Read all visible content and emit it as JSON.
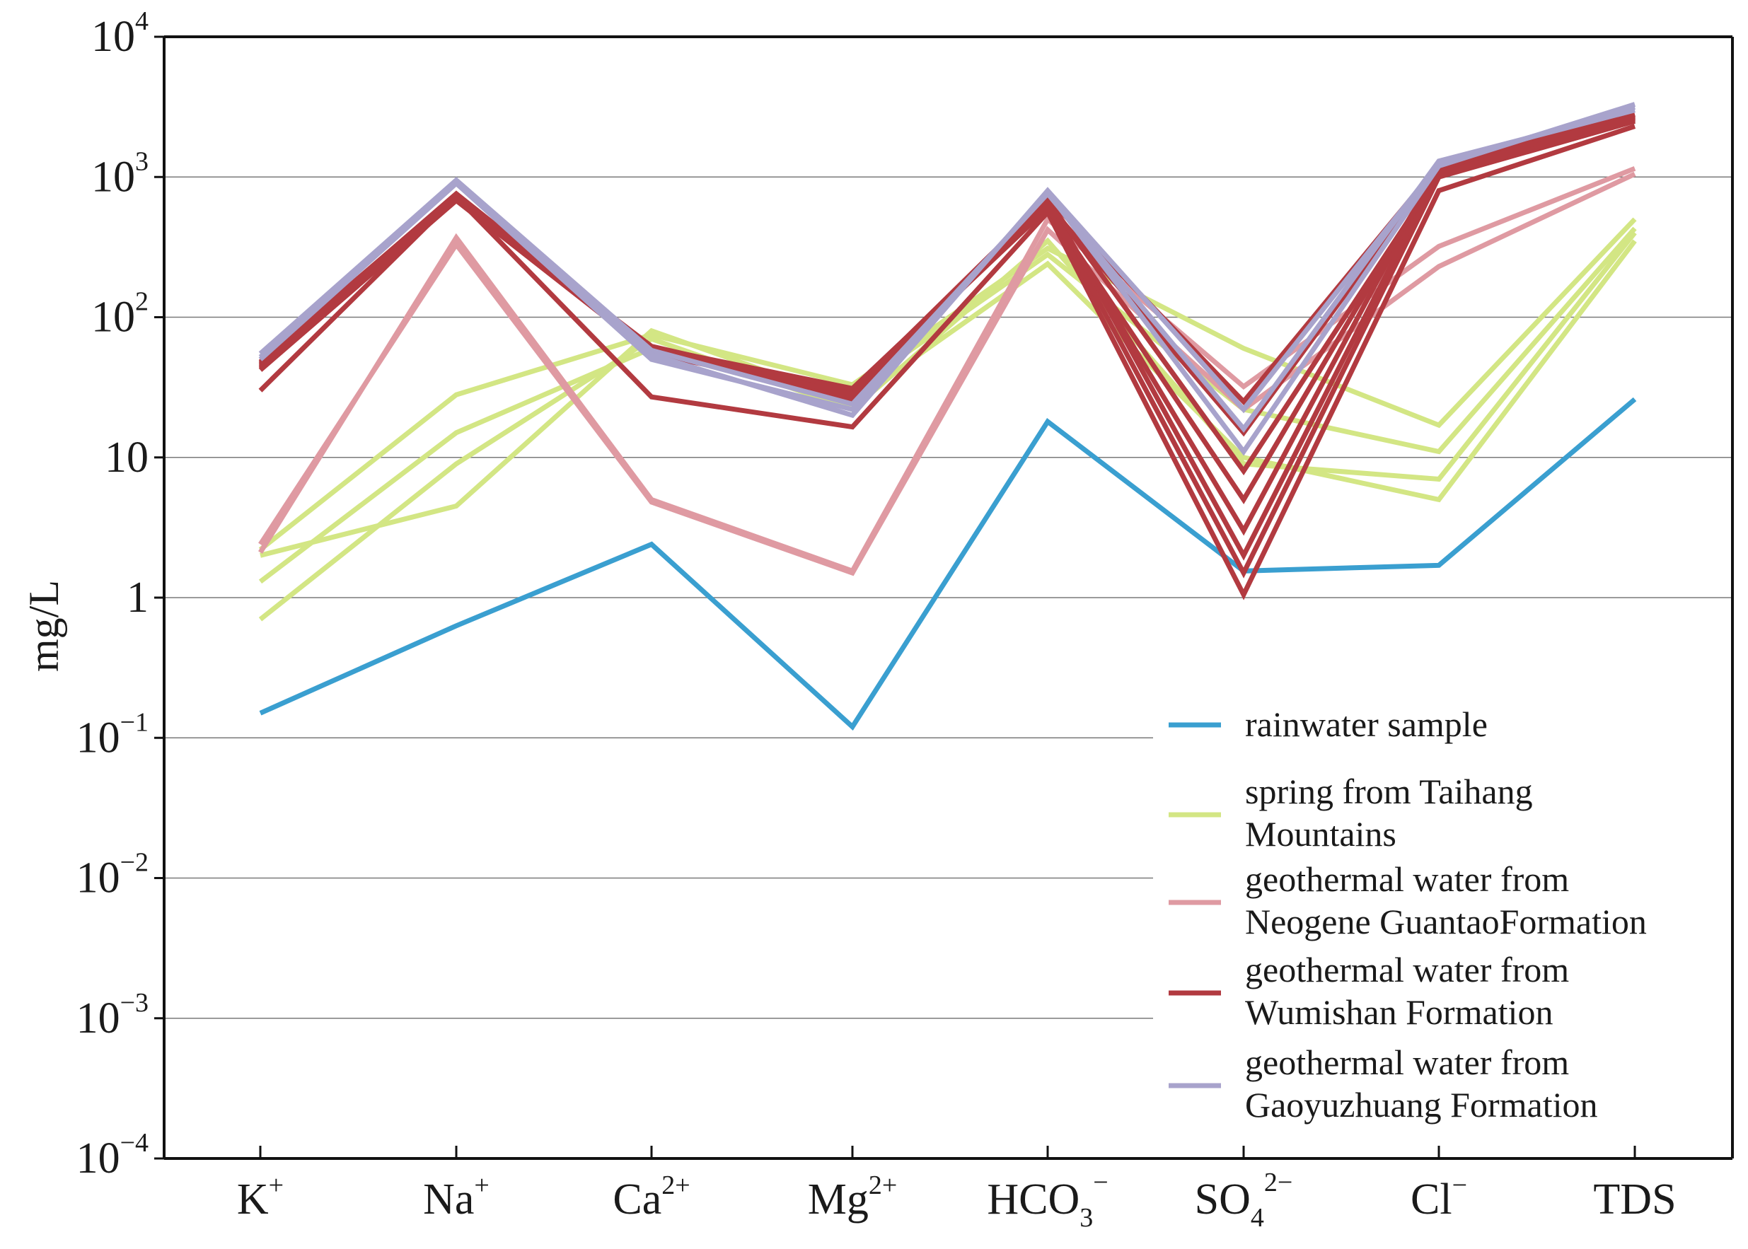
{
  "chart_data": {
    "type": "line",
    "title": "",
    "xlabel": "",
    "ylabel": "mg/L",
    "yscale": "log",
    "ylim": [
      0.0001,
      10000
    ],
    "grid": "horizontal",
    "categories": [
      {
        "base": "K",
        "sup": "+",
        "sub": ""
      },
      {
        "base": "Na",
        "sup": "+",
        "sub": ""
      },
      {
        "base": "Ca",
        "sup": "2+",
        "sub": ""
      },
      {
        "base": "Mg",
        "sup": "2+",
        "sub": ""
      },
      {
        "base": "HCO",
        "sub": "3",
        "sup": "−"
      },
      {
        "base": "SO",
        "sub": "4",
        "sup": "2−"
      },
      {
        "base": "Cl",
        "sup": "−",
        "sub": ""
      },
      {
        "base": "TDS",
        "sup": "",
        "sub": ""
      }
    ],
    "y_ticks": [
      {
        "value": 0.0001,
        "base": "10",
        "exp": "−4"
      },
      {
        "value": 0.001,
        "base": "10",
        "exp": "−3"
      },
      {
        "value": 0.01,
        "base": "10",
        "exp": "−2"
      },
      {
        "value": 0.1,
        "base": "10",
        "exp": "−1"
      },
      {
        "value": 1,
        "base": "1",
        "exp": ""
      },
      {
        "value": 10,
        "base": "10",
        "exp": ""
      },
      {
        "value": 100,
        "base": "10",
        "exp": "2"
      },
      {
        "value": 1000,
        "base": "10",
        "exp": "3"
      },
      {
        "value": 10000,
        "base": "10",
        "exp": "4"
      }
    ],
    "legend_position": "lower-right",
    "groups": [
      {
        "name": "rainwater sample",
        "legend_lines": [
          "rainwater sample"
        ],
        "color": "#3a9fd0",
        "series": [
          {
            "values": [
              0.15,
              0.63,
              2.4,
              0.12,
              18,
              1.55,
              1.7,
              26
            ]
          }
        ]
      },
      {
        "name": "spring from Taihang Mountains",
        "legend_lines": [
          "spring from Taihang",
          "Mountains"
        ],
        "color": "#d3e684",
        "series": [
          {
            "values": [
              2.2,
              28,
              75,
              33,
              310,
              60,
              17,
              500
            ]
          },
          {
            "values": [
              1.3,
              15,
              60,
              30,
              280,
              22,
              11,
              430
            ]
          },
          {
            "values": [
              0.7,
              9,
              70,
              22,
              350,
              9,
              7,
              400
            ]
          },
          {
            "values": [
              2.0,
              4.5,
              80,
              25,
              240,
              10,
              5,
              350
            ]
          }
        ]
      },
      {
        "name": "geothermal water from Neogene GuantaoFormation",
        "legend_lines": [
          "geothermal water from",
          "Neogene  GuantaoFormation"
        ],
        "color": "#df9aa2",
        "series": [
          {
            "values": [
              2.1,
              370,
              5,
              1.55,
              500,
              32,
              320,
              1150
            ]
          },
          {
            "values": [
              2.4,
              330,
              4.8,
              1.5,
              420,
              22,
              230,
              1050
            ]
          }
        ]
      },
      {
        "name": "geothermal water from Wumishan Formation",
        "legend_lines": [
          "geothermal water from",
          "Wumishan Formation"
        ],
        "color": "#b23a40",
        "series": [
          {
            "values": [
              30,
              720,
              27,
              16.5,
              560,
              1.05,
              800,
              2300
            ]
          },
          {
            "values": [
              42,
              680,
              55,
              28,
              620,
              1.5,
              1000,
              2500
            ]
          },
          {
            "values": [
              45,
              700,
              60,
              30,
              700,
              2,
              1100,
              2600
            ]
          },
          {
            "values": [
              48,
              750,
              58,
              26,
              650,
              3,
              1200,
              2700
            ]
          },
          {
            "values": [
              44,
              710,
              62,
              29,
              600,
              5,
              1150,
              2800
            ]
          },
          {
            "values": [
              46,
              730,
              57,
              27,
              680,
              8,
              1050,
              2650
            ]
          },
          {
            "values": [
              43,
              690,
              61,
              31,
              640,
              15,
              1180,
              2550
            ]
          },
          {
            "values": [
              47,
              760,
              59,
              28,
              710,
              25,
              1220,
              2750
            ]
          }
        ]
      },
      {
        "name": "geothermal water from Gaoyuzhuang Formation",
        "legend_lines": [
          "geothermal water from",
          "Gaoyuzhuang Formation"
        ],
        "color": "#a8a3cc",
        "series": [
          {
            "values": [
              50,
              900,
              50,
              22,
              780,
              11,
              1200,
              3300
            ]
          },
          {
            "values": [
              55,
              950,
              58,
              24,
              760,
              16,
              1300,
              3000
            ]
          },
          {
            "values": [
              52,
              920,
              54,
              20,
              800,
              22,
              1250,
              3150
            ]
          }
        ]
      }
    ]
  }
}
